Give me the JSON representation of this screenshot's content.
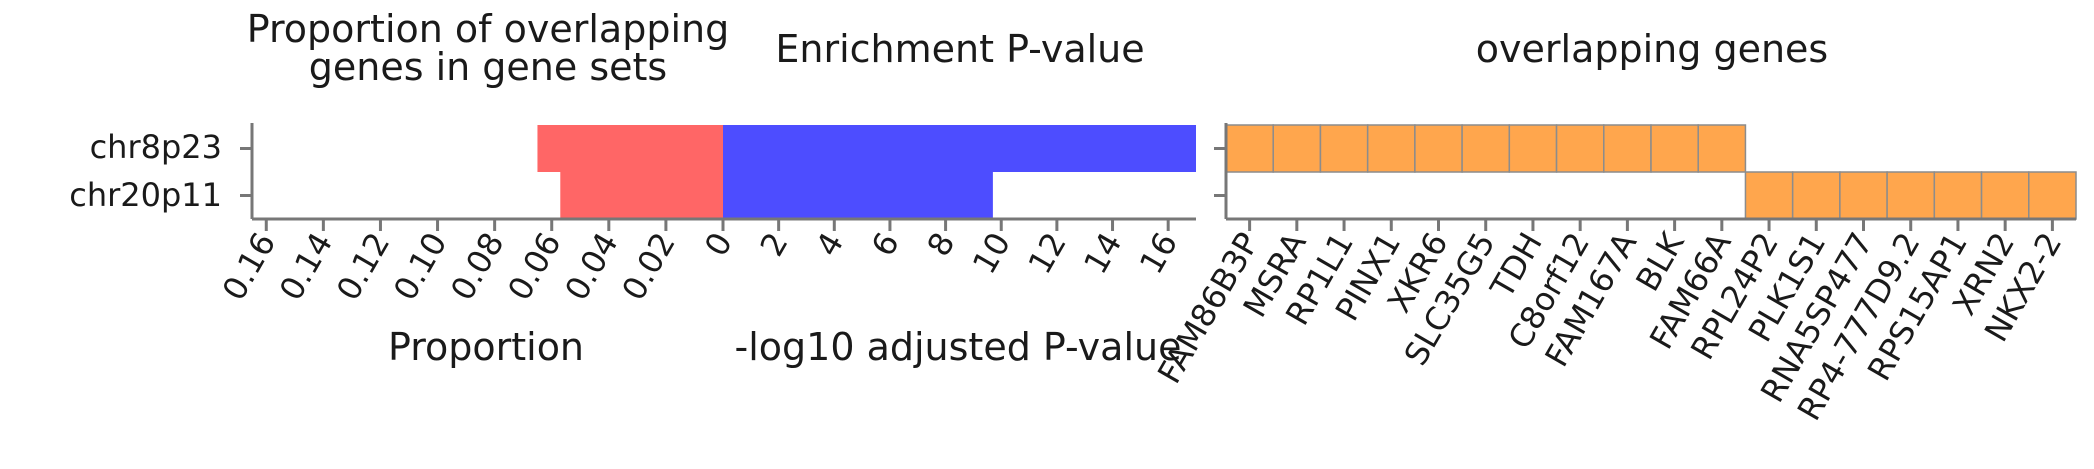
{
  "chart_data": [
    {
      "type": "bar",
      "orientation": "horizontal",
      "direction": "reversed",
      "title": [
        "Proportion of overlapping",
        "genes in gene sets"
      ],
      "xlabel": "Proportion",
      "categories": [
        "chr8p23",
        "chr20p11"
      ],
      "values": [
        0.065,
        0.057
      ],
      "xlim": [
        0.165,
        0
      ],
      "xticks": [
        "0.16",
        "0.14",
        "0.12",
        "0.10",
        "0.08",
        "0.06",
        "0.04",
        "0.02"
      ],
      "color": "#ff6666"
    },
    {
      "type": "bar",
      "orientation": "horizontal",
      "title": "Enrichment P-value",
      "xlabel": "-log10 adjusted P-value",
      "categories": [
        "chr8p23",
        "chr20p11"
      ],
      "values": [
        17.0,
        9.7
      ],
      "xlim": [
        0,
        17
      ],
      "xticks": [
        "0",
        "2",
        "4",
        "6",
        "8",
        "10",
        "12",
        "14",
        "16"
      ],
      "color": "#4d4dff"
    },
    {
      "type": "heatmap",
      "title": "overlapping genes",
      "rows": [
        "chr8p23",
        "chr20p11"
      ],
      "genes": [
        "FAM86B3P",
        "MSRA",
        "RP1L1",
        "PINX1",
        "XKR6",
        "SLC35G5",
        "TDH",
        "C8orf12",
        "FAM167A",
        "BLK",
        "FAM66A",
        "RPL24P2",
        "PLK1S1",
        "RNA5SP477",
        "RP4-777D9.2",
        "RPS15AP1",
        "XRN2",
        "NKX2-2"
      ],
      "membership": [
        [
          1,
          1,
          1,
          1,
          1,
          1,
          1,
          1,
          1,
          1,
          1,
          0,
          0,
          0,
          0,
          0,
          0,
          0
        ],
        [
          0,
          0,
          0,
          0,
          0,
          0,
          0,
          0,
          0,
          0,
          0,
          1,
          1,
          1,
          1,
          1,
          1,
          1
        ]
      ],
      "color": "#ffa64d"
    }
  ]
}
